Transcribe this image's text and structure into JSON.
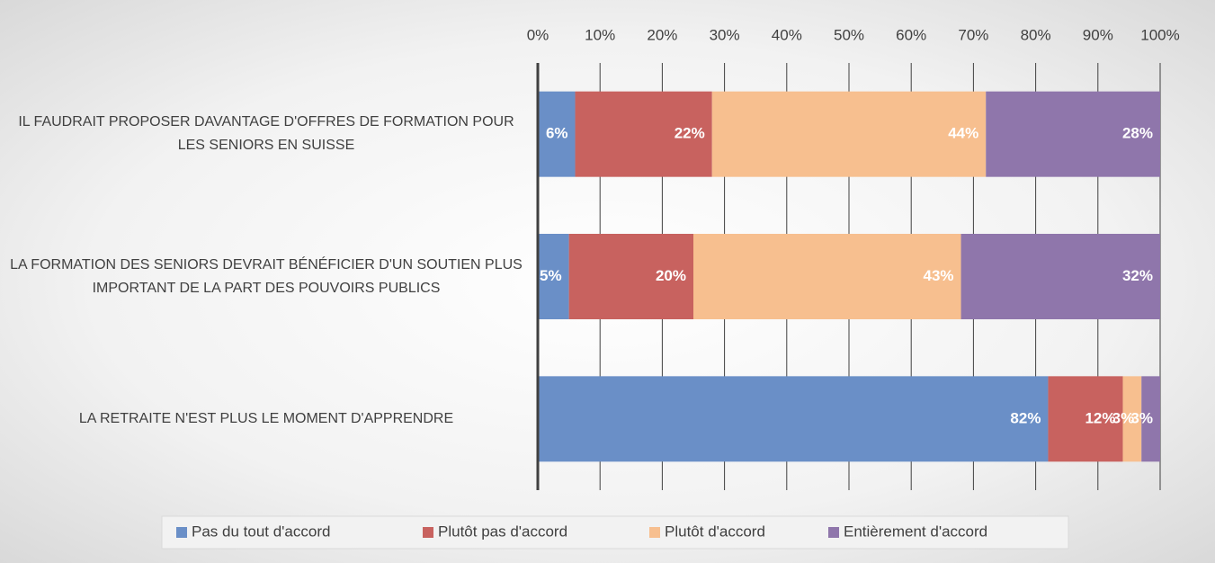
{
  "chart_data": {
    "type": "stacked_barh",
    "categories": [
      "IL FAUDRAIT PROPOSER DAVANTAGE D'OFFRES DE FORMATION POUR LES SENIORS EN SUISSE",
      "LA FORMATION DES SENIORS DEVRAIT BÉNÉFICIER D'UN SOUTIEN PLUS IMPORTANT DE LA PART DES POUVOIRS PUBLICS",
      "LA RETRAITE N'EST PLUS LE MOMENT D'APPRENDRE"
    ],
    "series": [
      {
        "name": "Pas du tout d'accord",
        "color": "#6a8fc7",
        "values": [
          6,
          5,
          82
        ],
        "value_labels": [
          "6%",
          "5%",
          "82%"
        ]
      },
      {
        "name": "Plutôt pas d'accord",
        "color": "#c8625f",
        "values": [
          22,
          20,
          12
        ],
        "value_labels": [
          "22%",
          "20%",
          "12%"
        ]
      },
      {
        "name": "Plutôt d'accord",
        "color": "#f7bf8f",
        "values": [
          44,
          43,
          3
        ],
        "value_labels": [
          "44%",
          "43%",
          "3%"
        ]
      },
      {
        "name": "Entièrement d'accord",
        "color": "#8f76ab",
        "values": [
          28,
          32,
          3
        ],
        "value_labels": [
          "28%",
          "32%",
          "3%"
        ]
      }
    ],
    "xlim": [
      0,
      100
    ],
    "xticks": [
      {
        "value": 0,
        "label": "0%"
      },
      {
        "value": 10,
        "label": "10%"
      },
      {
        "value": 20,
        "label": "20%"
      },
      {
        "value": 30,
        "label": "30%"
      },
      {
        "value": 40,
        "label": "40%"
      },
      {
        "value": 50,
        "label": "50%"
      },
      {
        "value": 60,
        "label": "60%"
      },
      {
        "value": 70,
        "label": "70%"
      },
      {
        "value": 80,
        "label": "80%"
      },
      {
        "value": 90,
        "label": "90%"
      },
      {
        "value": 100,
        "label": "100%"
      }
    ],
    "grid": true,
    "legend": "bottom"
  }
}
